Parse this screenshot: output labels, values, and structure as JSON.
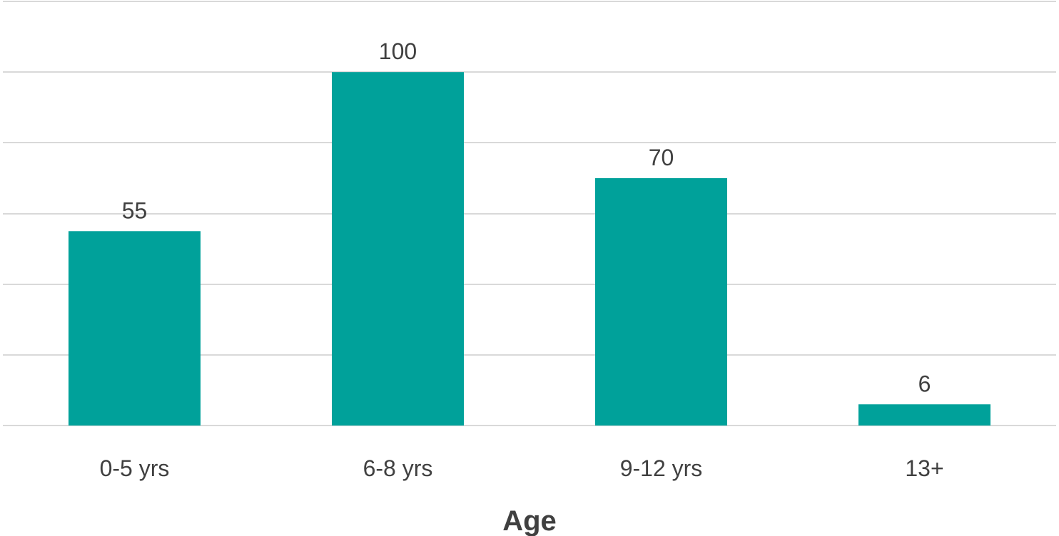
{
  "chart_data": {
    "type": "bar",
    "title": "",
    "xlabel": "Age",
    "ylabel": "",
    "categories": [
      "0-5 yrs",
      "6-8 yrs",
      "9-12 yrs",
      "13+"
    ],
    "values": [
      55,
      100,
      70,
      6
    ],
    "data_labels": [
      "55",
      "100",
      "70",
      "6"
    ],
    "ylim": [
      0,
      120
    ],
    "grid": true,
    "legend": "none",
    "bar_color": "#00a19a",
    "grid_color": "#d9d9d9",
    "text_color": "#404040"
  }
}
